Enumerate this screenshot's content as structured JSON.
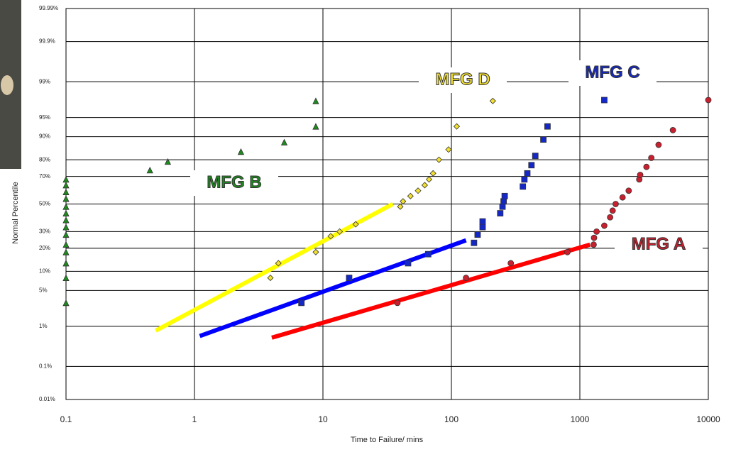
{
  "chart_data": {
    "type": "probability-scatter",
    "x_label": "Time to Failure/ mins",
    "y_label": "Normal Percentile",
    "xscale": "log",
    "yscale": "probit",
    "grid": true,
    "xlim": [
      0.1,
      10000
    ],
    "xticks": [
      0.1,
      1,
      10,
      100,
      1000,
      10000
    ],
    "ylim": [
      0.01,
      99.99
    ],
    "yticks": [
      {
        "value": 0.01,
        "label": "0.01%"
      },
      {
        "value": 0.1,
        "label": "0.1%"
      },
      {
        "value": 1,
        "label": "1%"
      },
      {
        "value": 5,
        "label": "5%"
      },
      {
        "value": 10,
        "label": "10%"
      },
      {
        "value": 20,
        "label": "20%"
      },
      {
        "value": 30,
        "label": "30%"
      },
      {
        "value": 50,
        "label": "50%"
      },
      {
        "value": 70,
        "label": "70%"
      },
      {
        "value": 80,
        "label": "80%"
      },
      {
        "value": 90,
        "label": "90%"
      },
      {
        "value": 95,
        "label": "95%"
      },
      {
        "value": 99,
        "label": "99%"
      },
      {
        "value": 99.9,
        "label": "99.9%"
      },
      {
        "value": 99.99,
        "label": "99.99%"
      }
    ],
    "series": [
      {
        "name": "MFG A",
        "color": "#c8202e",
        "marker": "circle",
        "x": [
          38,
          130,
          290,
          800,
          1280,
          1290,
          1350,
          1550,
          1720,
          1800,
          1900,
          2150,
          2400,
          2900,
          2950,
          3300,
          3600,
          4100,
          5300,
          10000
        ],
        "values": [
          3,
          8,
          13,
          18,
          22,
          26,
          30,
          34,
          40,
          45,
          50,
          55,
          60,
          68,
          71,
          76,
          81,
          87,
          92,
          97.6
        ]
      },
      {
        "name": "MFG B",
        "color": "#1e8a1e",
        "marker": "triangle",
        "x": [
          0.1,
          0.1,
          0.1,
          0.1,
          0.1,
          0.1,
          0.1,
          0.1,
          0.1,
          0.1,
          0.1,
          0.1,
          0.1,
          0.1,
          0.45,
          0.62,
          2.3,
          5,
          8.8,
          8.8
        ],
        "values": [
          3,
          8,
          13,
          18,
          22,
          28,
          33,
          38,
          43,
          48,
          54,
          59,
          64,
          68,
          74,
          79,
          84,
          88,
          93,
          97.5
        ]
      },
      {
        "name": "MFG C",
        "color": "#1428c8",
        "marker": "square",
        "x": [
          6.8,
          16,
          46,
          66,
          150,
          160,
          175,
          175,
          240,
          250,
          255,
          260,
          360,
          370,
          390,
          420,
          450,
          520,
          560,
          1550
        ],
        "values": [
          3,
          8,
          13,
          17,
          23,
          28,
          33,
          37,
          43,
          48,
          52,
          56,
          63,
          68,
          72,
          77,
          82,
          89,
          93,
          97.6
        ]
      },
      {
        "name": "MFG D",
        "color": "#f2e030",
        "marker": "diamond",
        "x": [
          3.9,
          4.5,
          8.8,
          11.5,
          13.5,
          18,
          40,
          42,
          48,
          55,
          62,
          67,
          72,
          80,
          95,
          110,
          210
        ],
        "values": [
          8,
          13,
          18,
          27,
          30,
          35,
          48,
          52,
          56,
          60,
          64,
          68,
          72,
          80,
          85,
          93,
          97.5
        ]
      }
    ],
    "fit_lines": [
      {
        "color": "#ff0000",
        "x": [
          4,
          1200
        ],
        "values": [
          0.55,
          22
        ]
      },
      {
        "color": "#0000ff",
        "x": [
          1.1,
          130
        ],
        "values": [
          0.6,
          24.5
        ]
      },
      {
        "color": "#ffff00",
        "x": [
          0.5,
          35
        ],
        "values": [
          0.8,
          50
        ]
      }
    ]
  }
}
